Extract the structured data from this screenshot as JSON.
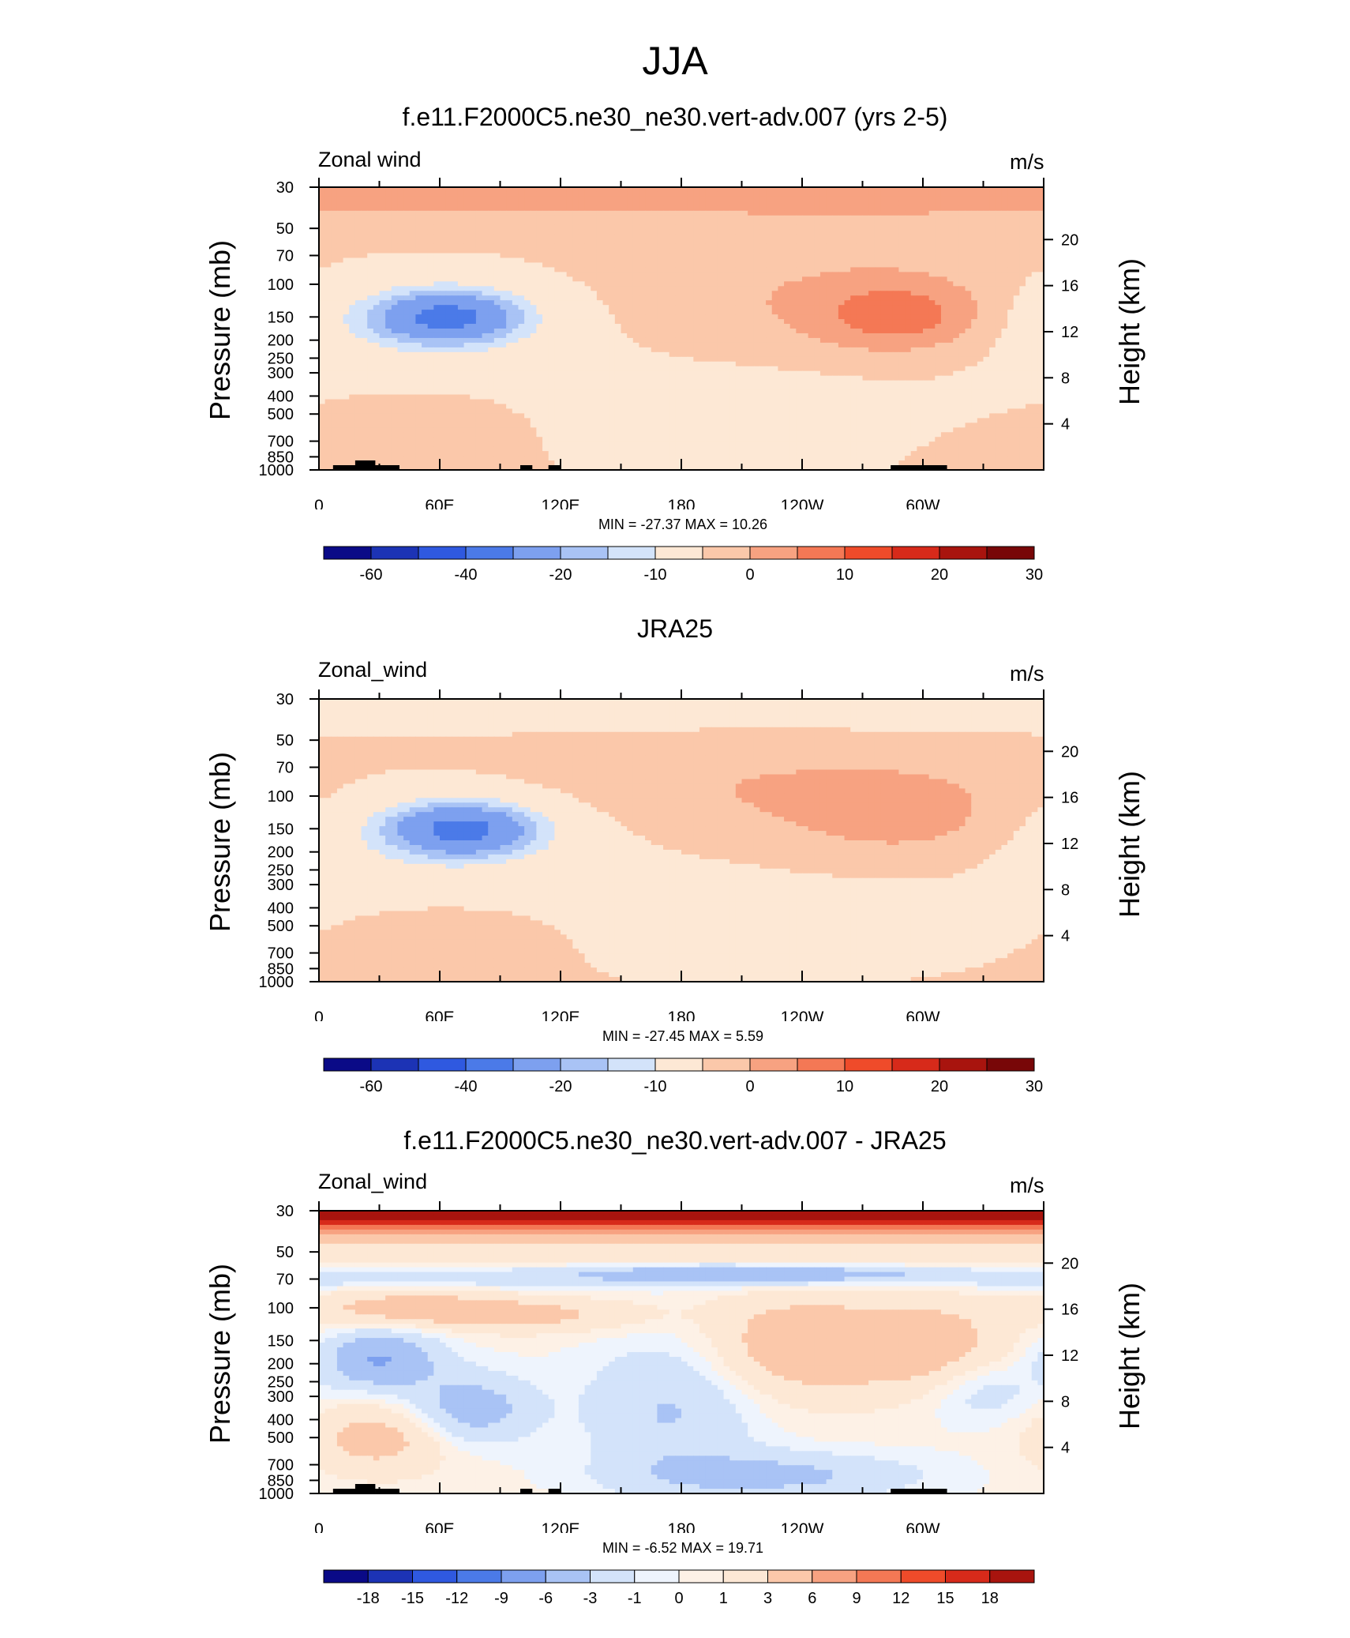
{
  "title": "JJA",
  "panels": [
    {
      "title": "f.e11.F2000C5.ne30_ne30.vert-adv.007 (yrs 2-5)",
      "variable_label": "Zonal wind",
      "units": "m/s",
      "ylabel_left": "Pressure (mb)",
      "ylabel_right": "Height (km)",
      "minmax": "MIN = -27.37  MAX =  10.26"
    },
    {
      "title": "JRA25",
      "variable_label": "Zonal_wind",
      "units": "m/s",
      "ylabel_left": "Pressure (mb)",
      "ylabel_right": "Height (km)",
      "minmax": "MIN = -27.45  MAX =   5.59"
    },
    {
      "title": "f.e11.F2000C5.ne30_ne30.vert-adv.007 - JRA25",
      "variable_label": "Zonal_wind",
      "units": "m/s",
      "ylabel_left": "Pressure (mb)",
      "ylabel_right": "Height (km)",
      "minmax": "MIN =  -6.52  MAX =  19.71"
    }
  ],
  "chart_data": [
    {
      "type": "heatmap",
      "title": "f.e11.F2000C5.ne30_ne30.vert-adv.007 (yrs 2-5)",
      "x_ticks": [
        "0",
        "60E",
        "120E",
        "180",
        "120W",
        "60W"
      ],
      "x_tick_lon": [
        0,
        60,
        120,
        180,
        240,
        300
      ],
      "xlim": [
        0,
        360
      ],
      "y_ticks_pressure": [
        "30",
        "50",
        "70",
        "100",
        "150",
        "200",
        "250",
        "300",
        "400",
        "500",
        "700",
        "850",
        "1000"
      ],
      "y_tick_values": [
        30,
        50,
        70,
        100,
        150,
        200,
        250,
        300,
        400,
        500,
        700,
        850,
        1000
      ],
      "ylim": [
        1000,
        30
      ],
      "y_ticks_height_km": [
        "20",
        "16",
        "12",
        "8",
        "4"
      ],
      "height_values_km": [
        20,
        16,
        12,
        8,
        4
      ],
      "colorbar_levels": [
        "-60",
        "-40",
        "-20",
        "-10",
        "0",
        "10",
        "20",
        "30"
      ],
      "colors": [
        "#0a0a87",
        "#1c33b5",
        "#2f59e0",
        "#4b7ae8",
        "#7da0ef",
        "#a9c3f5",
        "#d3e3fa",
        "#fde8d5",
        "#fbc8aa",
        "#f7a281",
        "#f47855",
        "#ef4b2a",
        "#d72a1a",
        "#a8140e",
        "#780708"
      ],
      "min": -27.37,
      "max": 10.26,
      "features": [
        {
          "kind": "easterly-jet",
          "lon": [
            10,
            150
          ],
          "p": [
            300,
            80
          ],
          "peak": -27.37,
          "core_lon": 65,
          "core_p": 150
        },
        {
          "kind": "westerly-jet",
          "lon": [
            190,
            330
          ],
          "p": [
            250,
            90
          ],
          "peak": 10.26,
          "core_lon": 290,
          "core_p": 150
        },
        {
          "kind": "stratospheric-westerly",
          "p": [
            30,
            45
          ],
          "value": 7
        }
      ]
    },
    {
      "type": "heatmap",
      "title": "JRA25",
      "x_ticks": [
        "0",
        "60E",
        "120E",
        "180",
        "120W",
        "60W"
      ],
      "x_tick_lon": [
        0,
        60,
        120,
        180,
        240,
        300
      ],
      "xlim": [
        0,
        360
      ],
      "y_ticks_pressure": [
        "30",
        "50",
        "70",
        "100",
        "150",
        "200",
        "250",
        "300",
        "400",
        "500",
        "700",
        "850",
        "1000"
      ],
      "y_tick_values": [
        30,
        50,
        70,
        100,
        150,
        200,
        250,
        300,
        400,
        500,
        700,
        850,
        1000
      ],
      "ylim": [
        1000,
        30
      ],
      "y_ticks_height_km": [
        "20",
        "16",
        "12",
        "8",
        "4"
      ],
      "height_values_km": [
        20,
        16,
        12,
        8,
        4
      ],
      "colorbar_levels": [
        "-60",
        "-40",
        "-20",
        "-10",
        "0",
        "10",
        "20",
        "30"
      ],
      "colors": [
        "#0a0a87",
        "#1c33b5",
        "#2f59e0",
        "#4b7ae8",
        "#7da0ef",
        "#a9c3f5",
        "#d3e3fa",
        "#fde8d5",
        "#fbc8aa",
        "#f7a281",
        "#f47855",
        "#ef4b2a",
        "#d72a1a",
        "#a8140e",
        "#780708"
      ],
      "min": -27.45,
      "max": 5.59,
      "features": [
        {
          "kind": "easterly-jet",
          "lon": [
            10,
            160
          ],
          "p": [
            300,
            80
          ],
          "peak": -27.45,
          "core_lon": 70,
          "core_p": 150
        },
        {
          "kind": "westerly-jet",
          "lon": [
            120,
            330
          ],
          "p": [
            200,
            55
          ],
          "peak": 5.59,
          "core_lon": 300,
          "core_p": 150
        },
        {
          "kind": "stratospheric-easterly",
          "p": [
            30,
            45
          ],
          "value": -5
        }
      ]
    },
    {
      "type": "heatmap",
      "title": "f.e11.F2000C5.ne30_ne30.vert-adv.007 - JRA25",
      "x_ticks": [
        "0",
        "60E",
        "120E",
        "180",
        "120W",
        "60W"
      ],
      "x_tick_lon": [
        0,
        60,
        120,
        180,
        240,
        300
      ],
      "xlim": [
        0,
        360
      ],
      "y_ticks_pressure": [
        "30",
        "50",
        "70",
        "100",
        "150",
        "200",
        "250",
        "300",
        "400",
        "500",
        "700",
        "850",
        "1000"
      ],
      "y_tick_values": [
        30,
        50,
        70,
        100,
        150,
        200,
        250,
        300,
        400,
        500,
        700,
        850,
        1000
      ],
      "ylim": [
        1000,
        30
      ],
      "y_ticks_height_km": [
        "20",
        "16",
        "12",
        "8",
        "4"
      ],
      "height_values_km": [
        20,
        16,
        12,
        8,
        4
      ],
      "colorbar_levels": [
        "-18",
        "-15",
        "-12",
        "-9",
        "-6",
        "-3",
        "-1",
        "0",
        "1",
        "3",
        "6",
        "9",
        "12",
        "15",
        "18"
      ],
      "colors": [
        "#0a0a87",
        "#1c33b5",
        "#2f59e0",
        "#4b7ae8",
        "#7da0ef",
        "#a9c3f5",
        "#d3e3fa",
        "#eef4fd",
        "#fdf1e6",
        "#fde8d5",
        "#fbc8aa",
        "#f7a281",
        "#f47855",
        "#ef4b2a",
        "#d72a1a",
        "#a8140e"
      ],
      "min": -6.52,
      "max": 19.71,
      "features": [
        {
          "kind": "stratospheric-bias",
          "p": [
            30,
            50
          ],
          "peak": 19.71
        },
        {
          "kind": "negative-band",
          "lon": [
            130,
            300
          ],
          "p": [
            80,
            60
          ],
          "value": -5
        },
        {
          "kind": "negative-bias",
          "lon": [
            10,
            60
          ],
          "p": [
            250,
            130
          ],
          "peak": -6.52
        }
      ]
    }
  ]
}
